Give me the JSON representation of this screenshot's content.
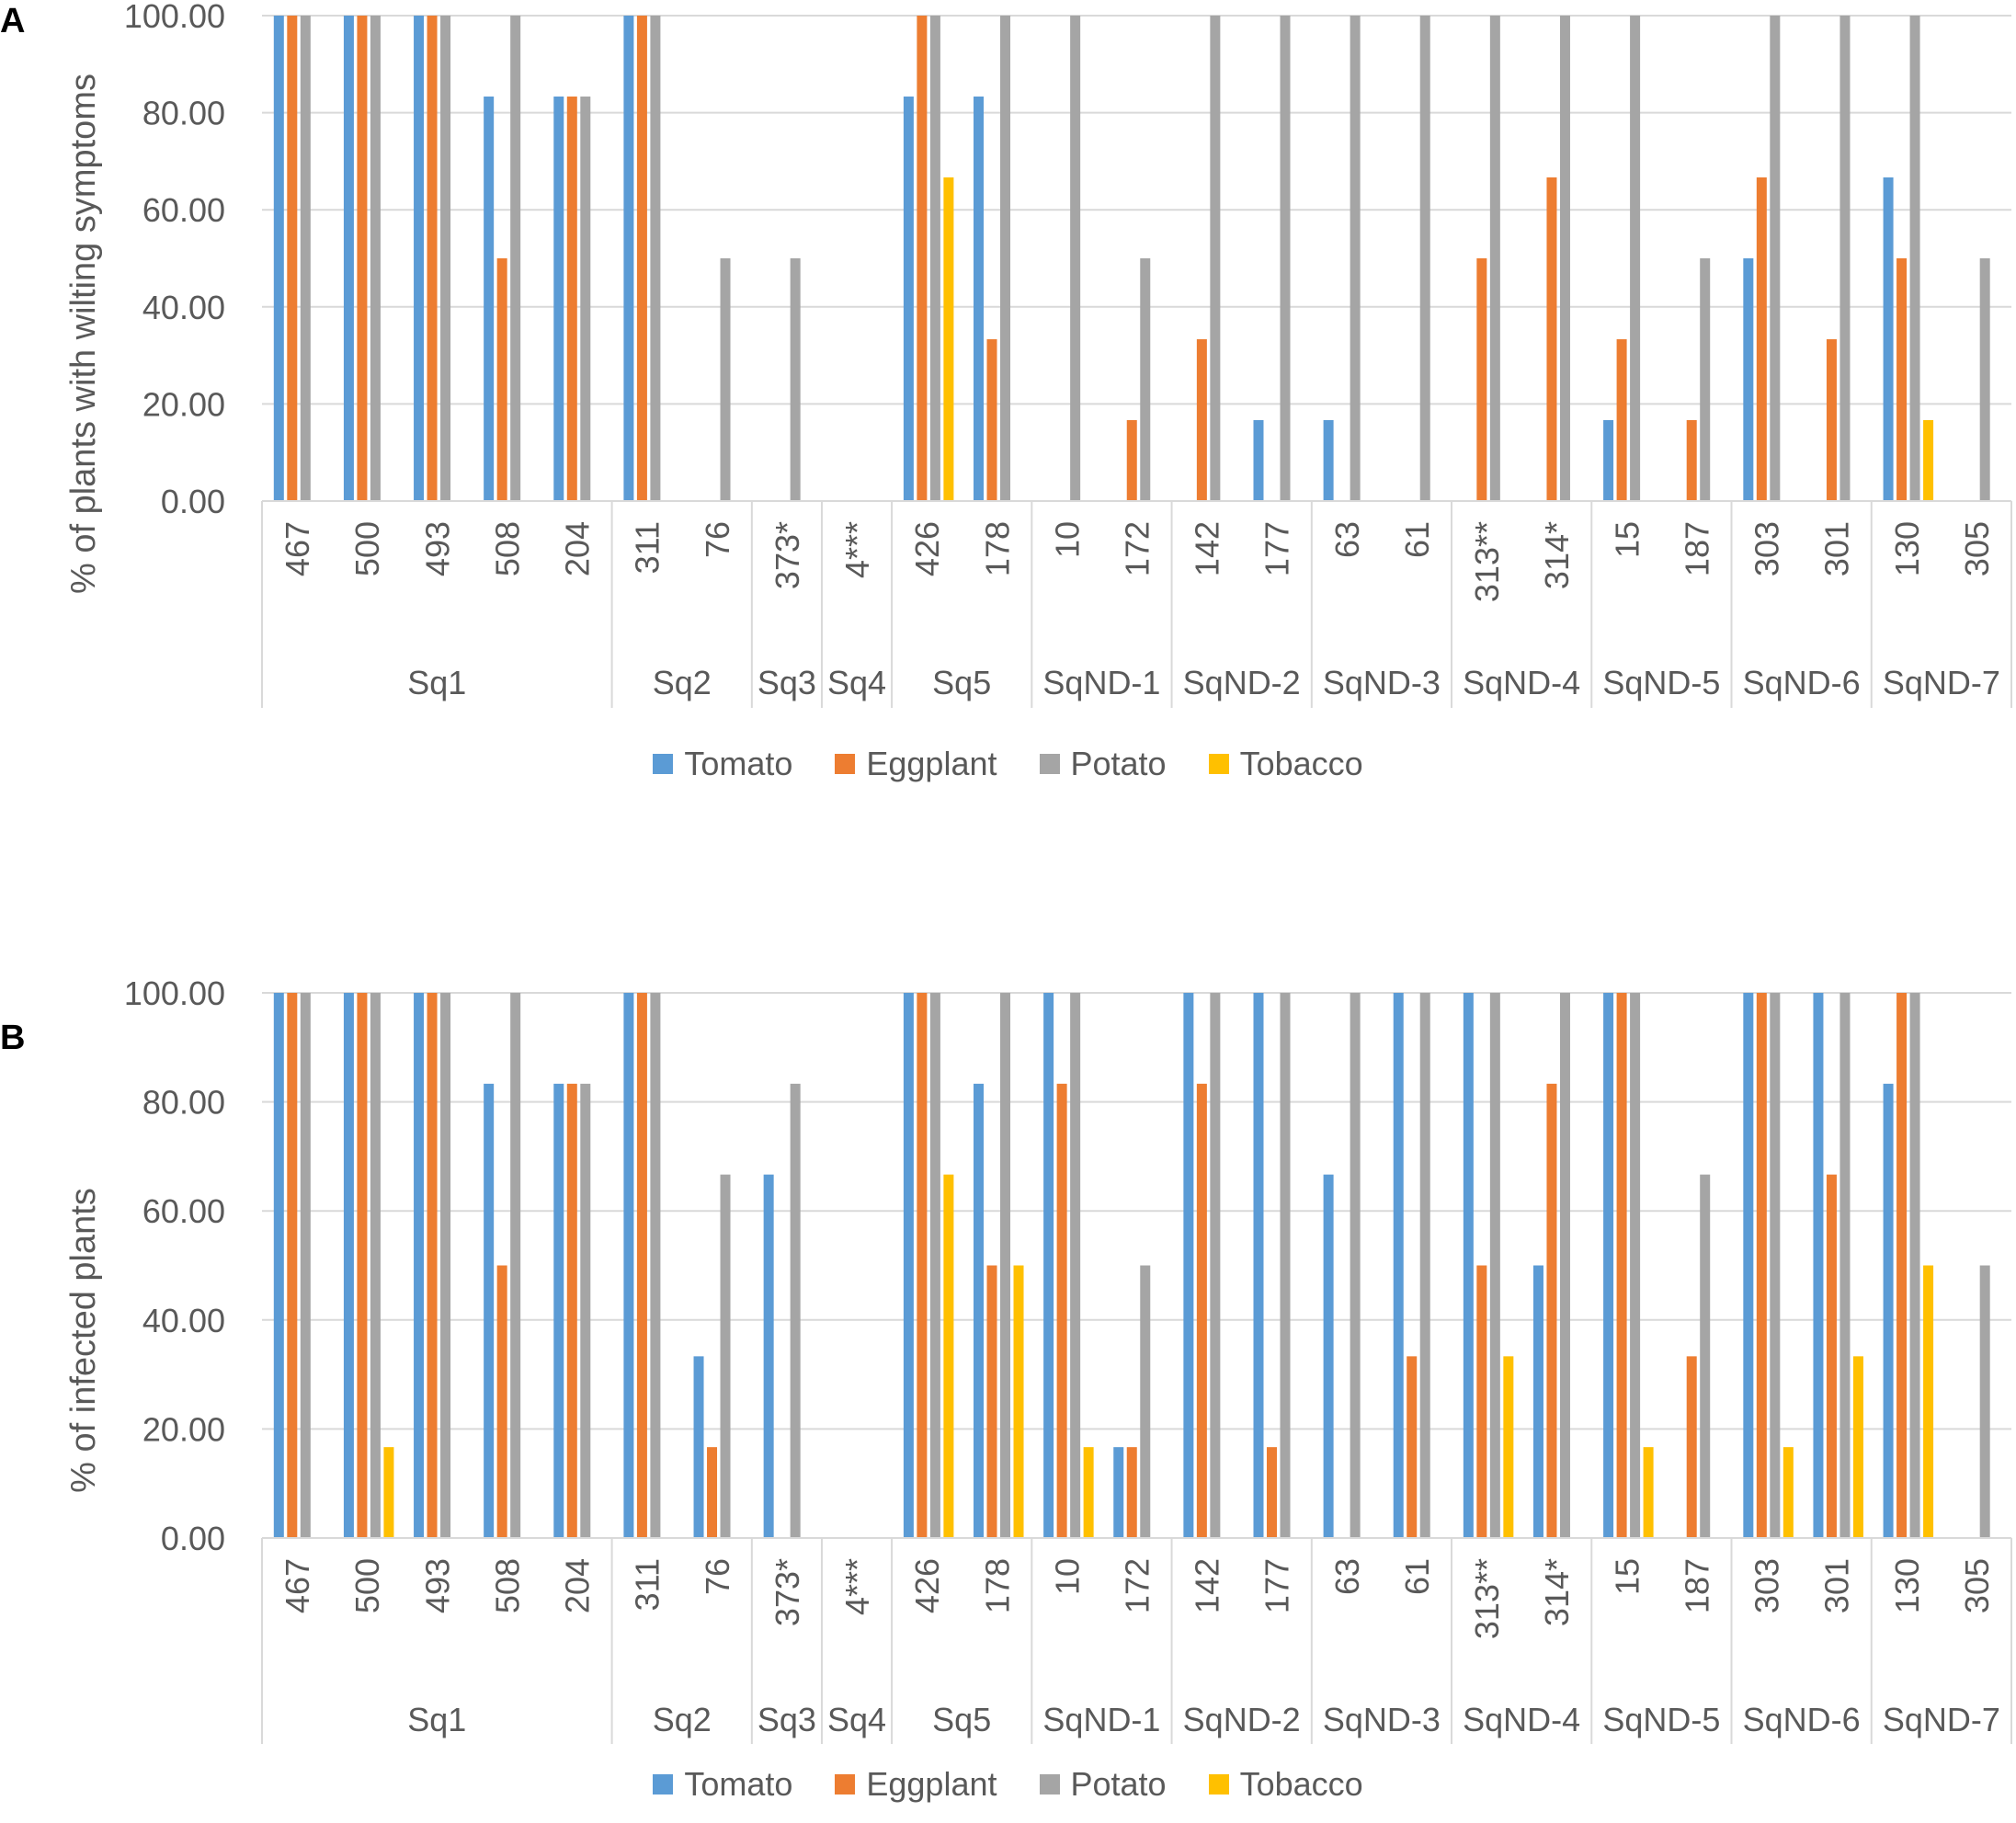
{
  "colors": {
    "Tomato": "#5B9BD5",
    "Eggplant": "#ED7D31",
    "Potato": "#A5A5A5",
    "Tobacco": "#FFC000",
    "axis_text": "#595959",
    "grid": "#D9D9D9"
  },
  "chart_data": [
    {
      "type": "bar",
      "panel_label": "A",
      "title": "",
      "xlabel": "",
      "ylabel": "% of plants with wilting symptoms",
      "ylim": [
        0,
        100
      ],
      "yticks": [
        "0.00",
        "20.00",
        "40.00",
        "60.00",
        "80.00",
        "100.00"
      ],
      "grid": true,
      "legend_position": "bottom",
      "groups": [
        {
          "name": "Sq1",
          "strains": [
            "467",
            "500",
            "493",
            "508",
            "204"
          ]
        },
        {
          "name": "Sq2",
          "strains": [
            "311",
            "76"
          ]
        },
        {
          "name": "Sq3",
          "strains": [
            "373*"
          ]
        },
        {
          "name": "Sq4",
          "strains": [
            "4***"
          ]
        },
        {
          "name": "Sq5",
          "strains": [
            "426",
            "178"
          ]
        },
        {
          "name": "SqND-1",
          "strains": [
            "10",
            "172"
          ]
        },
        {
          "name": "SqND-2",
          "strains": [
            "142",
            "177"
          ]
        },
        {
          "name": "SqND-3",
          "strains": [
            "63",
            "61"
          ]
        },
        {
          "name": "SqND-4",
          "strains": [
            "313**",
            "314*"
          ]
        },
        {
          "name": "SqND-5",
          "strains": [
            "15",
            "187"
          ]
        },
        {
          "name": "SqND-6",
          "strains": [
            "303",
            "301"
          ]
        },
        {
          "name": "SqND-7",
          "strains": [
            "130",
            "305"
          ]
        }
      ],
      "series": [
        {
          "name": "Tomato",
          "values": [
            100,
            100,
            100,
            83.33,
            83.33,
            100,
            0,
            0,
            0,
            83.33,
            83.33,
            0,
            0,
            0,
            16.67,
            16.67,
            0,
            0,
            0,
            16.67,
            0,
            50,
            0,
            66.67,
            0
          ]
        },
        {
          "name": "Eggplant",
          "values": [
            100,
            100,
            100,
            50,
            83.33,
            100,
            0,
            0,
            0,
            100,
            33.33,
            0,
            16.67,
            33.33,
            0,
            0,
            0,
            50,
            66.67,
            33.33,
            16.67,
            66.67,
            33.33,
            50,
            0
          ]
        },
        {
          "name": "Potato",
          "values": [
            100,
            100,
            100,
            100,
            83.33,
            100,
            50,
            50,
            0,
            100,
            100,
            100,
            50,
            100,
            100,
            100,
            100,
            100,
            100,
            100,
            50,
            100,
            100,
            100,
            50
          ]
        },
        {
          "name": "Tobacco",
          "values": [
            0,
            0,
            0,
            0,
            0,
            0,
            0,
            0,
            0,
            66.67,
            0,
            0,
            0,
            0,
            0,
            0,
            0,
            0,
            0,
            0,
            0,
            0,
            0,
            16.67,
            0
          ]
        }
      ]
    },
    {
      "type": "bar",
      "panel_label": "B",
      "title": "",
      "xlabel": "",
      "ylabel": "% of infected plants",
      "ylim": [
        0,
        100
      ],
      "yticks": [
        "0.00",
        "20.00",
        "40.00",
        "60.00",
        "80.00",
        "100.00"
      ],
      "grid": true,
      "legend_position": "bottom",
      "groups": [
        {
          "name": "Sq1",
          "strains": [
            "467",
            "500",
            "493",
            "508",
            "204"
          ]
        },
        {
          "name": "Sq2",
          "strains": [
            "311",
            "76"
          ]
        },
        {
          "name": "Sq3",
          "strains": [
            "373*"
          ]
        },
        {
          "name": "Sq4",
          "strains": [
            "4***"
          ]
        },
        {
          "name": "Sq5",
          "strains": [
            "426",
            "178"
          ]
        },
        {
          "name": "SqND-1",
          "strains": [
            "10",
            "172"
          ]
        },
        {
          "name": "SqND-2",
          "strains": [
            "142",
            "177"
          ]
        },
        {
          "name": "SqND-3",
          "strains": [
            "63",
            "61"
          ]
        },
        {
          "name": "SqND-4",
          "strains": [
            "313**",
            "314*"
          ]
        },
        {
          "name": "SqND-5",
          "strains": [
            "15",
            "187"
          ]
        },
        {
          "name": "SqND-6",
          "strains": [
            "303",
            "301"
          ]
        },
        {
          "name": "SqND-7",
          "strains": [
            "130",
            "305"
          ]
        }
      ],
      "series": [
        {
          "name": "Tomato",
          "values": [
            100,
            100,
            100,
            83.33,
            83.33,
            100,
            33.33,
            66.67,
            0,
            100,
            83.33,
            100,
            16.67,
            100,
            100,
            66.67,
            100,
            100,
            50,
            100,
            0,
            100,
            100,
            83.33,
            0
          ]
        },
        {
          "name": "Eggplant",
          "values": [
            100,
            100,
            100,
            50,
            83.33,
            100,
            16.67,
            0,
            0,
            100,
            50,
            83.33,
            16.67,
            83.33,
            16.67,
            0,
            33.33,
            50,
            83.33,
            100,
            33.33,
            100,
            66.67,
            100,
            0
          ]
        },
        {
          "name": "Potato",
          "values": [
            100,
            100,
            100,
            100,
            83.33,
            100,
            66.67,
            83.33,
            0,
            100,
            100,
            100,
            50,
            100,
            100,
            100,
            100,
            100,
            100,
            100,
            66.67,
            100,
            100,
            100,
            50
          ]
        },
        {
          "name": "Tobacco",
          "values": [
            0,
            16.67,
            0,
            0,
            0,
            0,
            0,
            0,
            0,
            66.67,
            50,
            16.67,
            0,
            0,
            0,
            0,
            0,
            33.33,
            0,
            16.67,
            0,
            16.67,
            33.33,
            50,
            0
          ]
        }
      ]
    }
  ]
}
